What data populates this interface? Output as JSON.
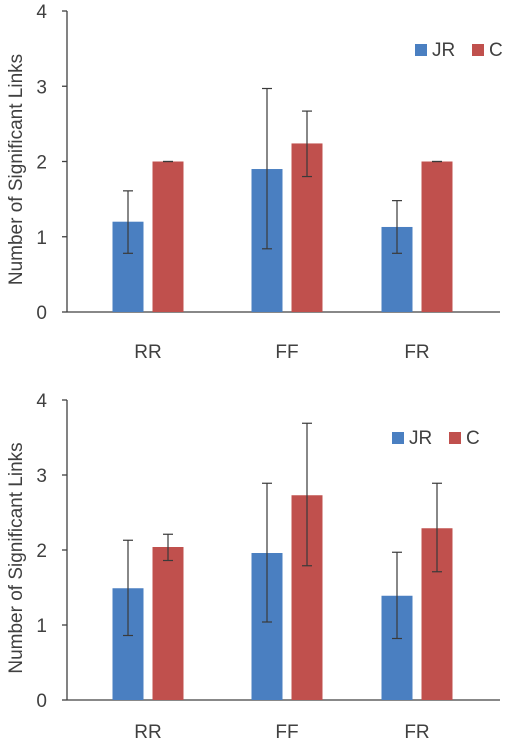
{
  "chart_data": [
    {
      "type": "bar",
      "categories": [
        "RR",
        "FF",
        "FR"
      ],
      "ylabel": "Number of Significant Links",
      "ylim": [
        0,
        4
      ],
      "yticks": [
        "0",
        "1",
        "2",
        "3",
        "4"
      ],
      "grid": false,
      "legend_position": "top-right",
      "series": [
        {
          "name": "JR",
          "color": "#4a7fc1",
          "values": [
            1.2,
            1.9,
            1.13
          ],
          "err_low": [
            0.78,
            0.84,
            0.78
          ],
          "err_high": [
            1.61,
            2.97,
            1.48
          ]
        },
        {
          "name": "C",
          "color": "#c0504d",
          "values": [
            2.0,
            2.24,
            2.0
          ],
          "err_low": [
            2.0,
            1.8,
            2.0
          ],
          "err_high": [
            2.0,
            2.67,
            2.0
          ]
        }
      ]
    },
    {
      "type": "bar",
      "categories": [
        "RR",
        "FF",
        "FR"
      ],
      "ylabel": "Number of Significant Links",
      "ylim": [
        0,
        4
      ],
      "yticks": [
        "0",
        "1",
        "2",
        "3",
        "4"
      ],
      "grid": false,
      "legend_position": "top-right",
      "series": [
        {
          "name": "JR",
          "color": "#4a7fc1",
          "values": [
            1.49,
            1.96,
            1.39
          ],
          "err_low": [
            0.86,
            1.04,
            0.82
          ],
          "err_high": [
            2.13,
            2.89,
            1.97
          ]
        },
        {
          "name": "C",
          "color": "#c0504d",
          "values": [
            2.04,
            2.73,
            2.29
          ],
          "err_low": [
            1.86,
            1.79,
            1.71
          ],
          "err_high": [
            2.21,
            3.69,
            2.89
          ]
        }
      ]
    }
  ]
}
